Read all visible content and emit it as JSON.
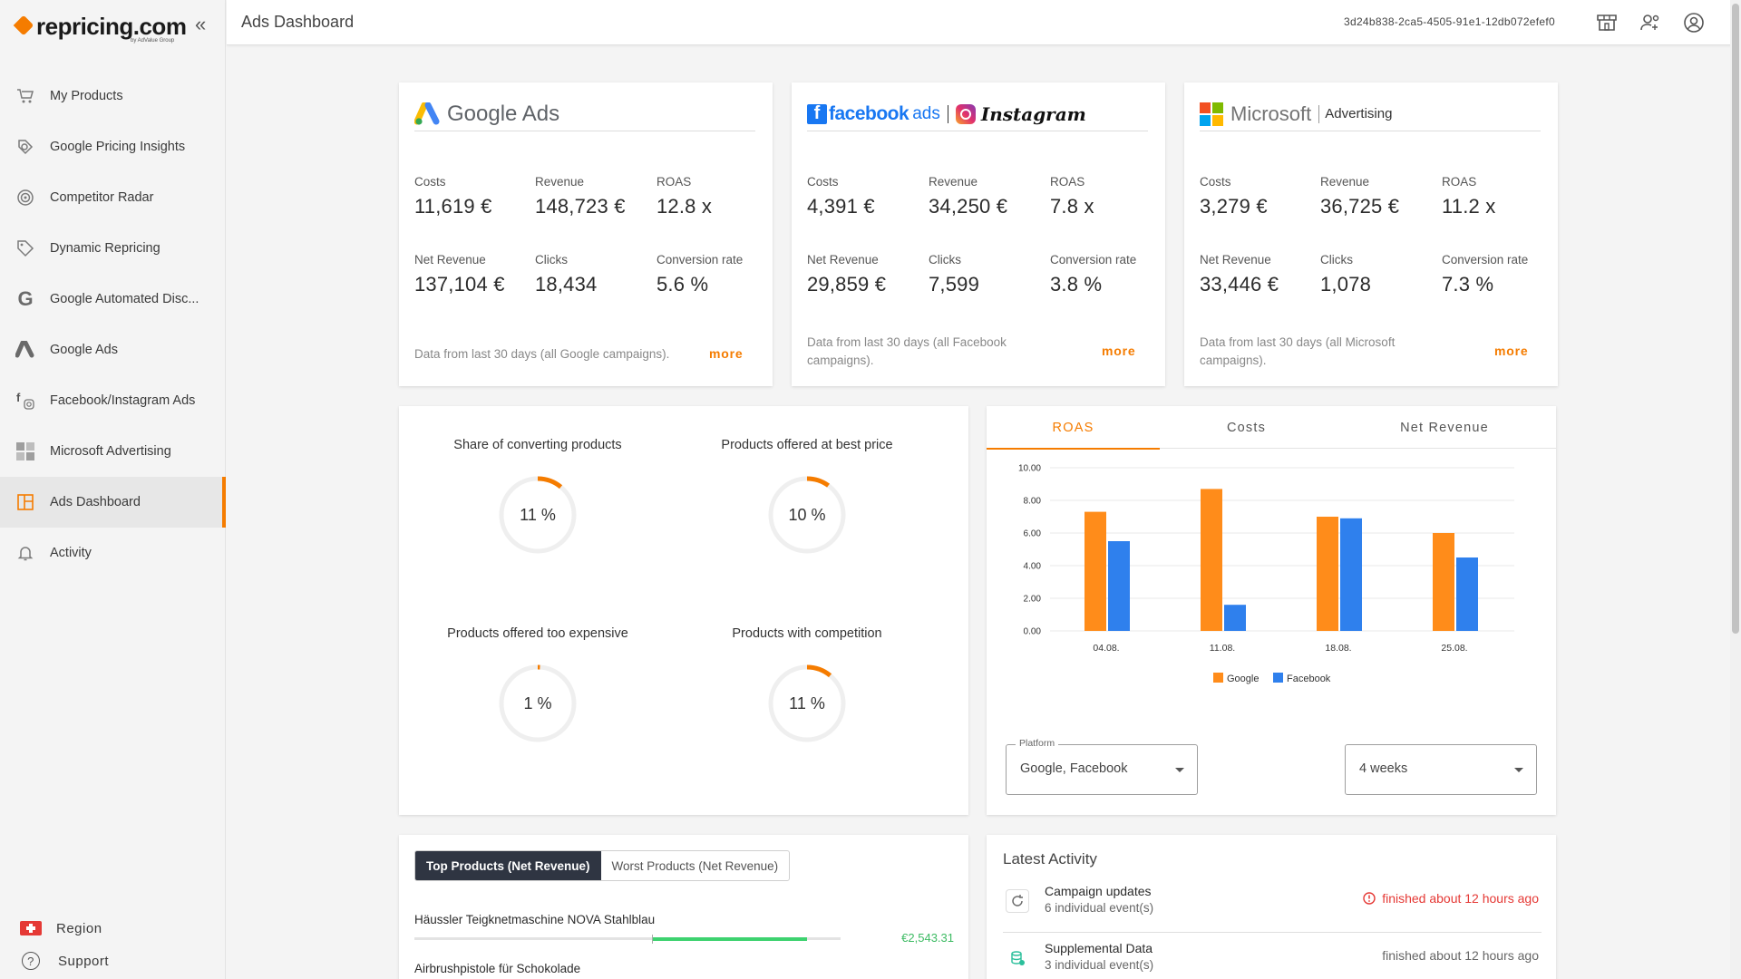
{
  "app": {
    "logo_text": "repricing.com",
    "logo_sub": "by AdValue Group",
    "page_title": "Ads Dashboard",
    "account_id": "3d24b838-2ca5-4505-91e1-12db072efef0"
  },
  "sidebar": {
    "items": [
      {
        "label": "My Products",
        "icon": "cart-icon"
      },
      {
        "label": "Google Pricing Insights",
        "icon": "insights-icon"
      },
      {
        "label": "Competitor Radar",
        "icon": "radar-icon"
      },
      {
        "label": "Dynamic Repricing",
        "icon": "tag-icon"
      },
      {
        "label": "Google Automated Disc...",
        "icon": "google-g-icon"
      },
      {
        "label": "Google Ads",
        "icon": "google-ads-icon"
      },
      {
        "label": "Facebook/Instagram Ads",
        "icon": "facebook-instagram-icon"
      },
      {
        "label": "Microsoft Advertising",
        "icon": "microsoft-icon"
      },
      {
        "label": "Ads Dashboard",
        "icon": "dashboard-icon",
        "active": true
      },
      {
        "label": "Activity",
        "icon": "bell-icon"
      }
    ],
    "region_label": "Region",
    "support_label": "Support"
  },
  "ads": {
    "google": {
      "brand": "Google Ads",
      "costs_label": "Costs",
      "costs": "11,619 €",
      "revenue_label": "Revenue",
      "revenue": "148,723 €",
      "roas_label": "ROAS",
      "roas": "12.8 x",
      "net_label": "Net Revenue",
      "net": "137,104 €",
      "clicks_label": "Clicks",
      "clicks": "18,434",
      "conv_label": "Conversion rate",
      "conv": "5.6 %",
      "note": "Data from last 30 days (all Google campaigns).",
      "more": "more"
    },
    "facebook": {
      "brand_fb": "facebook",
      "brand_ads": "ads",
      "brand_ig": "Instagram",
      "costs_label": "Costs",
      "costs": "4,391 €",
      "revenue_label": "Revenue",
      "revenue": "34,250 €",
      "roas_label": "ROAS",
      "roas": "7.8 x",
      "net_label": "Net Revenue",
      "net": "29,859 €",
      "clicks_label": "Clicks",
      "clicks": "7,599",
      "conv_label": "Conversion rate",
      "conv": "3.8 %",
      "note": "Data from last 30 days (all Facebook campaigns).",
      "more": "more"
    },
    "microsoft": {
      "brand": "Microsoft",
      "brand_sub": "Advertising",
      "costs_label": "Costs",
      "costs": "3,279 €",
      "revenue_label": "Revenue",
      "revenue": "36,725 €",
      "roas_label": "ROAS",
      "roas": "11.2 x",
      "net_label": "Net Revenue",
      "net": "33,446 €",
      "clicks_label": "Clicks",
      "clicks": "1,078",
      "conv_label": "Conversion rate",
      "conv": "7.3 %",
      "note": "Data from last 30 days (all Microsoft campaigns).",
      "more": "more"
    }
  },
  "gauges": [
    {
      "title": "Share of converting products",
      "value": 11,
      "label": "11 %"
    },
    {
      "title": "Products offered at best price",
      "value": 10,
      "label": "10 %"
    },
    {
      "title": "Products offered too expensive",
      "value": 1,
      "label": "1 %"
    },
    {
      "title": "Products with competition",
      "value": 11,
      "label": "11 %"
    }
  ],
  "chart_tabs": [
    "ROAS",
    "Costs",
    "Net Revenue"
  ],
  "chart_data": {
    "type": "bar",
    "categories": [
      "04.08.",
      "11.08.",
      "18.08.",
      "25.08."
    ],
    "series": [
      {
        "name": "Google",
        "values": [
          7.3,
          8.7,
          7.0,
          6.0
        ]
      },
      {
        "name": "Facebook",
        "values": [
          5.5,
          1.6,
          6.9,
          4.5
        ]
      }
    ],
    "ylim": [
      0,
      10
    ],
    "yticks": [
      "0.00",
      "2.00",
      "4.00",
      "6.00",
      "8.00",
      "10.00"
    ],
    "grid": true,
    "legend": "bottom",
    "colors": {
      "Google": "#ff8c1a",
      "Facebook": "#2f80ed"
    }
  },
  "filters": {
    "platform_label": "Platform",
    "platform_value": "Google, Facebook",
    "period_value": "4 weeks"
  },
  "products": {
    "tab_top": "Top Products (Net Revenue)",
    "tab_worst": "Worst Products (Net Revenue)",
    "rows": [
      {
        "name": "Häussler Teigknetmaschine NOVA Stahlblau",
        "value": "€2,543.31",
        "fill": 0.35
      },
      {
        "name": "Airbrushpistole für Schokolade",
        "value": "",
        "fill": 0
      }
    ]
  },
  "activity": {
    "title": "Latest Activity",
    "items": [
      {
        "name": "Campaign updates",
        "sub": "6 individual event(s)",
        "status": "finished about 12 hours ago",
        "state": "error"
      },
      {
        "name": "Supplemental Data",
        "sub": "3 individual event(s)",
        "status": "finished about 12 hours ago",
        "state": "ok"
      }
    ]
  }
}
